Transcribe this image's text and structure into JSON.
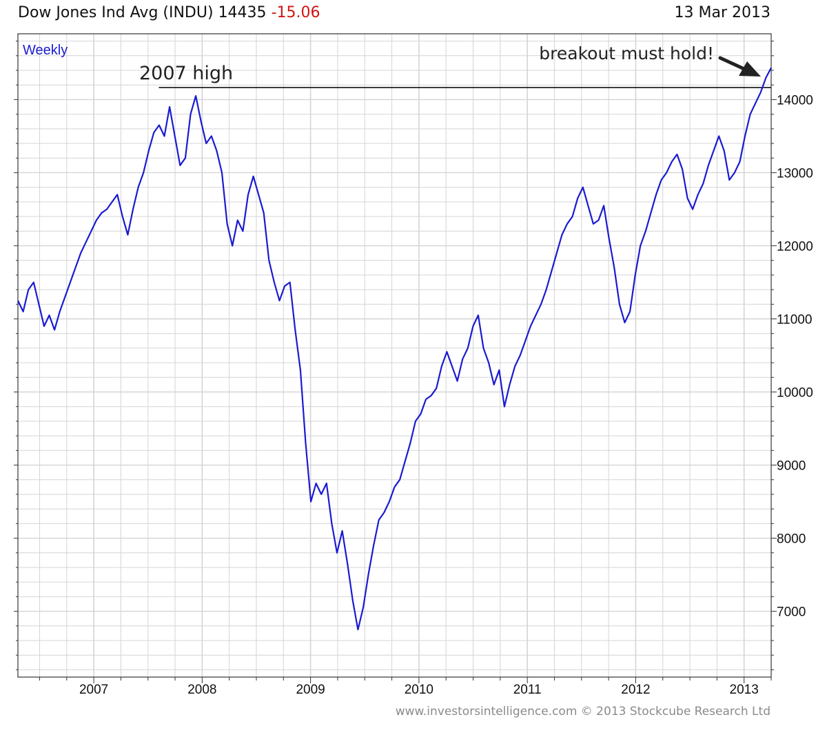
{
  "header": {
    "title": "Dow Jones Ind Avg (INDU)",
    "last": "14435",
    "change": "-15.06",
    "date": "13 Mar 2013"
  },
  "footer": {
    "credit": "www.investorsintelligence.com  © 2013 Stockcube Research Ltd"
  },
  "colors": {
    "series": "#1a1ad2",
    "grid": "#d4d4d4",
    "change_negative": "#d01414",
    "annotation": "#222222"
  },
  "chart_data": {
    "type": "line",
    "title": "Dow Jones Ind Avg (INDU)",
    "subtitle": "Weekly",
    "xlabel": "",
    "ylabel": "",
    "x_start": 2006.3,
    "x_end": 2013.25,
    "xlim": [
      2006.3,
      2013.25
    ],
    "ylim": [
      6100,
      14900
    ],
    "x_ticks": [
      2007,
      2008,
      2009,
      2010,
      2011,
      2012,
      2013
    ],
    "y_ticks": [
      7000,
      8000,
      9000,
      10000,
      11000,
      12000,
      13000,
      14000
    ],
    "grid": true,
    "legend": "none",
    "series": [
      {
        "name": "",
        "values": [
          11250,
          11100,
          11400,
          11500,
          11200,
          10900,
          11050,
          10850,
          11100,
          11300,
          11500,
          11700,
          11900,
          12050,
          12200,
          12350,
          12450,
          12500,
          12600,
          12700,
          12400,
          12150,
          12500,
          12800,
          13000,
          13300,
          13550,
          13650,
          13500,
          13900,
          13500,
          13100,
          13200,
          13800,
          14050,
          13700,
          13400,
          13500,
          13300,
          13000,
          12300,
          12000,
          12350,
          12200,
          12700,
          12950,
          12700,
          12450,
          11800,
          11500,
          11250,
          11450,
          11500,
          10850,
          10300,
          9300,
          8500,
          8750,
          8600,
          8750,
          8200,
          7800,
          8100,
          7650,
          7150,
          6750,
          7050,
          7500,
          7900,
          8250,
          8350,
          8500,
          8700,
          8800,
          9050,
          9300,
          9600,
          9700,
          9900,
          9950,
          10050,
          10350,
          10550,
          10350,
          10150,
          10450,
          10600,
          10900,
          11050,
          10600,
          10400,
          10100,
          10300,
          9800,
          10100,
          10350,
          10500,
          10700,
          10900,
          11050,
          11200,
          11400,
          11650,
          11900,
          12150,
          12300,
          12400,
          12650,
          12800,
          12550,
          12300,
          12350,
          12550,
          12100,
          11700,
          11200,
          10950,
          11100,
          11600,
          12000,
          12200,
          12450,
          12700,
          12900,
          13000,
          13150,
          13250,
          13050,
          12650,
          12500,
          12700,
          12850,
          13100,
          13300,
          13500,
          13300,
          12900,
          13000,
          13150,
          13500,
          13800,
          13950,
          14100,
          14300,
          14435
        ]
      }
    ],
    "annotations": [
      {
        "text": "2007 high",
        "value": 14165
      },
      {
        "text": "breakout must hold!"
      }
    ]
  }
}
